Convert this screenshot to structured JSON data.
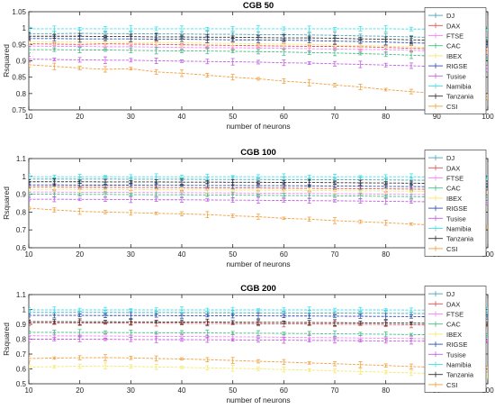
{
  "chart_data": [
    {
      "type": "line",
      "title": "CGB 50",
      "xlabel": "number of neurons",
      "ylabel": "Rsquared",
      "xlim": [
        10,
        100
      ],
      "ylim": [
        0.75,
        1.05
      ],
      "xticks": [
        10,
        20,
        30,
        40,
        50,
        60,
        70,
        80,
        90,
        100
      ],
      "yticks": [
        0.75,
        0.8,
        0.85,
        0.9,
        0.95,
        1,
        1.05
      ],
      "ytick_labels": [
        "0.75",
        "0.8",
        "0.85",
        "0.9",
        "0.95",
        "1",
        "1.05"
      ],
      "grid": false,
      "legend_position": "right",
      "x": [
        10,
        15,
        20,
        25,
        30,
        35,
        40,
        45,
        50,
        55,
        60,
        65,
        70,
        75,
        80,
        85,
        90,
        95,
        100
      ],
      "series": [
        {
          "name": "DJ",
          "color": "#4aa3b3",
          "values": [
            0.983,
            0.983,
            0.984,
            0.983,
            0.983,
            0.982,
            0.982,
            0.981,
            0.981,
            0.98,
            0.98,
            0.979,
            0.978,
            0.976,
            0.975,
            0.973,
            0.971,
            0.968,
            0.966
          ]
        },
        {
          "name": "DAX",
          "color": "#e05050",
          "values": [
            0.952,
            0.951,
            0.95,
            0.952,
            0.951,
            0.95,
            0.949,
            0.948,
            0.947,
            0.946,
            0.945,
            0.944,
            0.944,
            0.943,
            0.941,
            0.938,
            0.936,
            0.933,
            0.93
          ]
        },
        {
          "name": "FTSE",
          "color": "#ff80ff",
          "values": [
            0.945,
            0.944,
            0.944,
            0.943,
            0.943,
            0.942,
            0.941,
            0.94,
            0.94,
            0.939,
            0.938,
            0.937,
            0.936,
            0.935,
            0.934,
            0.932,
            0.93,
            0.927,
            0.925
          ]
        },
        {
          "name": "CAC",
          "color": "#40c080",
          "values": [
            0.934,
            0.934,
            0.933,
            0.933,
            0.932,
            0.931,
            0.93,
            0.93,
            0.929,
            0.928,
            0.927,
            0.925,
            0.924,
            0.922,
            0.92,
            0.917,
            0.914,
            0.911,
            0.908
          ]
        },
        {
          "name": "IBEX",
          "color": "#f4e96a",
          "values": [
            0.958,
            0.958,
            0.957,
            0.957,
            0.956,
            0.955,
            0.955,
            0.954,
            0.953,
            0.952,
            0.951,
            0.95,
            0.948,
            0.947,
            0.945,
            0.943,
            0.94,
            0.937,
            0.934
          ]
        },
        {
          "name": "RIGSE",
          "color": "#2f4fb0",
          "values": [
            0.968,
            0.968,
            0.967,
            0.967,
            0.967,
            0.966,
            0.966,
            0.965,
            0.964,
            0.964,
            0.963,
            0.962,
            0.96,
            0.959,
            0.957,
            0.955,
            0.953,
            0.95,
            0.948
          ]
        },
        {
          "name": "Tusise",
          "color": "#c060e0",
          "values": [
            0.905,
            0.904,
            0.903,
            0.902,
            0.902,
            0.9,
            0.899,
            0.898,
            0.897,
            0.896,
            0.894,
            0.893,
            0.891,
            0.889,
            0.887,
            0.885,
            0.882,
            0.879,
            0.876
          ]
        },
        {
          "name": "Namibia",
          "color": "#40e0e8",
          "values": [
            0.998,
            0.998,
            0.998,
            0.998,
            0.998,
            0.998,
            0.998,
            0.998,
            0.998,
            0.998,
            0.998,
            0.998,
            0.998,
            0.998,
            0.998,
            0.997,
            0.997,
            0.997,
            0.997
          ]
        },
        {
          "name": "Tanzania",
          "color": "#303030",
          "values": [
            0.975,
            0.975,
            0.975,
            0.974,
            0.974,
            0.973,
            0.973,
            0.972,
            0.972,
            0.971,
            0.97,
            0.97,
            0.969,
            0.967,
            0.966,
            0.964,
            0.963,
            0.961,
            0.958
          ]
        },
        {
          "name": "CSI",
          "color": "#f0a040",
          "values": [
            0.888,
            0.883,
            0.878,
            0.874,
            0.876,
            0.866,
            0.862,
            0.856,
            0.85,
            0.845,
            0.838,
            0.833,
            0.826,
            0.82,
            0.812,
            0.806,
            0.8,
            0.8,
            0.79
          ]
        }
      ]
    },
    {
      "type": "line",
      "title": "CGB 100",
      "xlabel": "number of neurons",
      "ylabel": "Rsquared",
      "xlim": [
        10,
        100
      ],
      "ylim": [
        0.6,
        1.1
      ],
      "xticks": [
        10,
        20,
        30,
        40,
        50,
        60,
        70,
        80,
        90,
        100
      ],
      "yticks": [
        0.6,
        0.7,
        0.8,
        0.9,
        1,
        1.1
      ],
      "ytick_labels": [
        "0.6",
        "0.7",
        "0.8",
        "0.9",
        "1",
        "1.1"
      ],
      "grid": false,
      "legend_position": "right",
      "x": [
        10,
        15,
        20,
        25,
        30,
        35,
        40,
        45,
        50,
        55,
        60,
        65,
        70,
        75,
        80,
        85,
        90,
        95,
        100
      ],
      "series": [
        {
          "name": "DJ",
          "color": "#4aa3b3",
          "values": [
            0.985,
            0.985,
            0.985,
            0.985,
            0.984,
            0.984,
            0.984,
            0.983,
            0.983,
            0.983,
            0.982,
            0.982,
            0.981,
            0.981,
            0.98,
            0.979,
            0.978,
            0.977,
            0.976
          ]
        },
        {
          "name": "DAX",
          "color": "#e05050",
          "values": [
            0.94,
            0.94,
            0.939,
            0.939,
            0.938,
            0.938,
            0.937,
            0.936,
            0.936,
            0.935,
            0.934,
            0.933,
            0.932,
            0.931,
            0.93,
            0.929,
            0.927,
            0.926,
            0.924
          ]
        },
        {
          "name": "FTSE",
          "color": "#ff80ff",
          "values": [
            0.912,
            0.912,
            0.911,
            0.911,
            0.91,
            0.909,
            0.909,
            0.908,
            0.907,
            0.906,
            0.905,
            0.904,
            0.903,
            0.902,
            0.9,
            0.899,
            0.897,
            0.896,
            0.894
          ]
        },
        {
          "name": "CAC",
          "color": "#40c080",
          "values": [
            0.9,
            0.9,
            0.899,
            0.899,
            0.898,
            0.897,
            0.897,
            0.896,
            0.895,
            0.894,
            0.893,
            0.892,
            0.891,
            0.89,
            0.888,
            0.887,
            0.885,
            0.883,
            0.881
          ]
        },
        {
          "name": "IBEX",
          "color": "#f4e96a",
          "values": [
            0.928,
            0.928,
            0.927,
            0.927,
            0.926,
            0.926,
            0.925,
            0.924,
            0.924,
            0.923,
            0.922,
            0.921,
            0.92,
            0.919,
            0.918,
            0.917,
            0.915,
            0.914,
            0.912
          ]
        },
        {
          "name": "RIGSE",
          "color": "#2f4fb0",
          "values": [
            0.952,
            0.952,
            0.951,
            0.951,
            0.951,
            0.95,
            0.95,
            0.949,
            0.949,
            0.948,
            0.948,
            0.947,
            0.946,
            0.945,
            0.944,
            0.943,
            0.942,
            0.941,
            0.94
          ]
        },
        {
          "name": "Tusise",
          "color": "#c060e0",
          "values": [
            0.872,
            0.872,
            0.871,
            0.871,
            0.87,
            0.869,
            0.869,
            0.868,
            0.867,
            0.866,
            0.865,
            0.864,
            0.863,
            0.862,
            0.86,
            0.859,
            0.857,
            0.855,
            0.853
          ]
        },
        {
          "name": "Namibia",
          "color": "#40e0e8",
          "values": [
            0.998,
            0.998,
            0.998,
            0.998,
            0.998,
            0.998,
            0.998,
            0.998,
            0.998,
            0.998,
            0.998,
            0.998,
            0.998,
            0.998,
            0.998,
            0.998,
            0.997,
            0.997,
            0.997
          ]
        },
        {
          "name": "Tanzania",
          "color": "#303030",
          "values": [
            0.97,
            0.97,
            0.97,
            0.969,
            0.969,
            0.969,
            0.968,
            0.968,
            0.967,
            0.967,
            0.966,
            0.966,
            0.965,
            0.964,
            0.963,
            0.962,
            0.961,
            0.96,
            0.959
          ]
        },
        {
          "name": "CSI",
          "color": "#f0a040",
          "values": [
            0.822,
            0.812,
            0.804,
            0.8,
            0.797,
            0.793,
            0.79,
            0.786,
            0.779,
            0.774,
            0.765,
            0.76,
            0.752,
            0.746,
            0.74,
            0.733,
            0.726,
            0.722,
            0.716
          ]
        }
      ]
    },
    {
      "type": "line",
      "title": "CGB 200",
      "xlabel": "number of neurons",
      "ylabel": "Rsquared",
      "xlim": [
        10,
        100
      ],
      "ylim": [
        0.5,
        1.1
      ],
      "xticks": [
        10,
        20,
        30,
        40,
        50,
        60,
        70,
        80,
        90,
        100
      ],
      "yticks": [
        0.5,
        0.6,
        0.7,
        0.8,
        0.9,
        1,
        1.1
      ],
      "ytick_labels": [
        "0.5",
        "0.6",
        "0.7",
        "0.8",
        "0.9",
        "1",
        "1.1"
      ],
      "grid": false,
      "legend_position": "right",
      "x": [
        10,
        15,
        20,
        25,
        30,
        35,
        40,
        45,
        50,
        55,
        60,
        65,
        70,
        75,
        80,
        85,
        90,
        95,
        100
      ],
      "series": [
        {
          "name": "DJ",
          "color": "#4aa3b3",
          "values": [
            0.98,
            0.98,
            0.98,
            0.98,
            0.979,
            0.979,
            0.979,
            0.978,
            0.978,
            0.977,
            0.977,
            0.976,
            0.976,
            0.975,
            0.974,
            0.973,
            0.972,
            0.971,
            0.97
          ]
        },
        {
          "name": "DAX",
          "color": "#e05050",
          "values": [
            0.91,
            0.91,
            0.909,
            0.909,
            0.908,
            0.908,
            0.907,
            0.906,
            0.905,
            0.904,
            0.903,
            0.902,
            0.901,
            0.9,
            0.899,
            0.897,
            0.895,
            0.893,
            0.891
          ]
        },
        {
          "name": "FTSE",
          "color": "#ff80ff",
          "values": [
            0.823,
            0.822,
            0.822,
            0.821,
            0.82,
            0.819,
            0.818,
            0.817,
            0.816,
            0.815,
            0.813,
            0.811,
            0.81,
            0.808,
            0.806,
            0.804,
            0.802,
            0.8,
            0.798
          ]
        },
        {
          "name": "CAC",
          "color": "#40c080",
          "values": [
            0.846,
            0.846,
            0.845,
            0.845,
            0.844,
            0.843,
            0.843,
            0.842,
            0.841,
            0.84,
            0.839,
            0.838,
            0.836,
            0.835,
            0.833,
            0.831,
            0.829,
            0.827,
            0.825
          ]
        },
        {
          "name": "IBEX",
          "color": "#f4e96a",
          "values": [
            0.612,
            0.615,
            0.618,
            0.62,
            0.617,
            0.613,
            0.61,
            0.607,
            0.604,
            0.6,
            0.596,
            0.592,
            0.587,
            0.583,
            0.578,
            0.573,
            0.568,
            0.563,
            0.558
          ]
        },
        {
          "name": "RIGSE",
          "color": "#2f4fb0",
          "values": [
            0.96,
            0.96,
            0.96,
            0.959,
            0.959,
            0.959,
            0.958,
            0.958,
            0.957,
            0.957,
            0.956,
            0.956,
            0.955,
            0.954,
            0.953,
            0.952,
            0.951,
            0.95,
            0.949
          ]
        },
        {
          "name": "Tusise",
          "color": "#c060e0",
          "values": [
            0.8,
            0.8,
            0.8,
            0.799,
            0.798,
            0.797,
            0.797,
            0.796,
            0.795,
            0.794,
            0.793,
            0.792,
            0.791,
            0.79,
            0.788,
            0.787,
            0.786,
            0.784,
            0.783
          ]
        },
        {
          "name": "Namibia",
          "color": "#40e0e8",
          "values": [
            0.997,
            0.997,
            0.997,
            0.997,
            0.997,
            0.997,
            0.997,
            0.997,
            0.997,
            0.997,
            0.997,
            0.997,
            0.997,
            0.997,
            0.997,
            0.996,
            0.996,
            0.996,
            0.996
          ]
        },
        {
          "name": "Tanzania",
          "color": "#303030",
          "values": [
            0.918,
            0.918,
            0.917,
            0.917,
            0.916,
            0.916,
            0.915,
            0.915,
            0.914,
            0.913,
            0.913,
            0.912,
            0.911,
            0.91,
            0.909,
            0.908,
            0.907,
            0.906,
            0.904
          ]
        },
        {
          "name": "CSI",
          "color": "#f0a040",
          "values": [
            0.67,
            0.673,
            0.675,
            0.676,
            0.674,
            0.67,
            0.667,
            0.662,
            0.657,
            0.651,
            0.646,
            0.64,
            0.635,
            0.629,
            0.623,
            0.616,
            0.61,
            0.604,
            0.598
          ]
        }
      ]
    }
  ]
}
